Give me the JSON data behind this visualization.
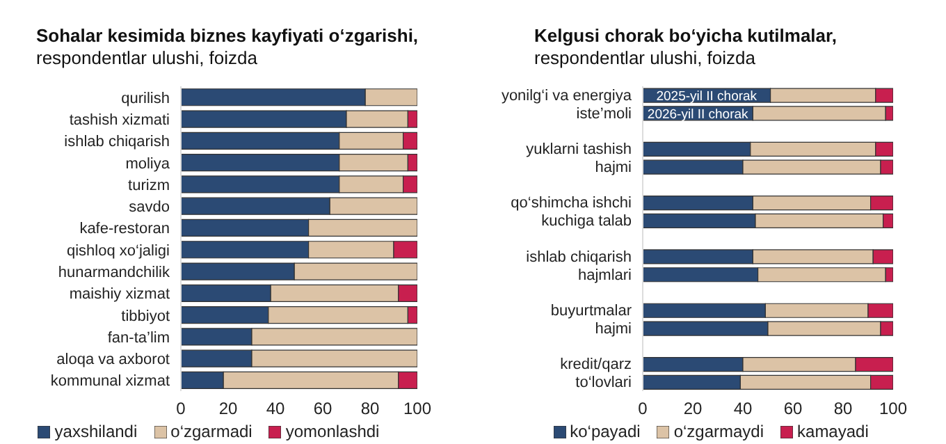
{
  "chart_data": [
    {
      "type": "bar",
      "orientation": "horizontal",
      "stacked": true,
      "title": "Sohalar kesimida biznes kayfiyati o‘zgarishi,",
      "subtitle": "respondentlar ulushi, foizda",
      "categories": [
        "qurilish",
        "tashish xizmati",
        "ishlab chiqarish",
        "moliya",
        "turizm",
        "savdo",
        "kafe-restoran",
        "qishloq xo‘jaligi",
        "hunarmandchilik",
        "maishiy xizmat",
        "tibbiyot",
        "fan-ta’lim",
        "aloqa va axborot",
        "kommunal xizmat"
      ],
      "series": [
        {
          "name": "yaxshilandi",
          "color": "#2b4a74",
          "values": [
            78,
            70,
            67,
            67,
            67,
            63,
            54,
            54,
            48,
            38,
            37,
            30,
            30,
            18
          ]
        },
        {
          "name": "o‘zgarmadi",
          "color": "#dcc3a6",
          "values": [
            22,
            26,
            27,
            29,
            27,
            37,
            46,
            36,
            52,
            54,
            59,
            70,
            70,
            74
          ]
        },
        {
          "name": "yomonlashdi",
          "color": "#c81f4f",
          "values": [
            0,
            4,
            6,
            4,
            6,
            0,
            0,
            10,
            0,
            8,
            4,
            0,
            0,
            8
          ]
        }
      ],
      "xlim": [
        0,
        100
      ],
      "xticks": [
        0,
        20,
        40,
        60,
        80,
        100
      ],
      "legend": "bottom",
      "grid": false
    },
    {
      "type": "bar",
      "orientation": "horizontal",
      "stacked": true,
      "title": "Kelgusi chorak bo‘yicha kutilmalar,",
      "subtitle": "respondentlar ulushi, foizda",
      "categories": [
        "yonilg‘i va energiya\niste’moli",
        null,
        null,
        "yuklarni tashish\nhajmi",
        null,
        null,
        "qo‘shimcha ishchi\nkuchiga talab",
        null,
        null,
        "ishlab chiqarish\nhajmlari",
        null,
        null,
        "buyurtmalar\nhajmi",
        null,
        null,
        "kredit/qarz\nto‘lovlari",
        null
      ],
      "series": [
        {
          "name": "ko‘payadi",
          "color": "#2b4a74",
          "values": [
            51,
            44,
            null,
            43,
            40,
            null,
            44,
            45,
            null,
            44,
            46,
            null,
            49,
            50,
            null,
            40,
            39
          ]
        },
        {
          "name": "o‘zgarmaydi",
          "color": "#dcc3a6",
          "values": [
            42,
            53,
            null,
            50,
            55,
            null,
            47,
            51,
            null,
            48,
            51,
            null,
            41,
            45,
            null,
            45,
            52
          ]
        },
        {
          "name": "kamayadi",
          "color": "#c81f4f",
          "values": [
            7,
            3,
            null,
            7,
            5,
            null,
            9,
            4,
            null,
            8,
            3,
            null,
            10,
            5,
            null,
            15,
            9
          ]
        }
      ],
      "annotations": [
        "2025-yil II chorak",
        "2026-yil II chorak"
      ],
      "xlim": [
        0,
        100
      ],
      "xticks": [
        0,
        20,
        40,
        60,
        80,
        100
      ],
      "legend": "bottom",
      "grid": false
    }
  ]
}
